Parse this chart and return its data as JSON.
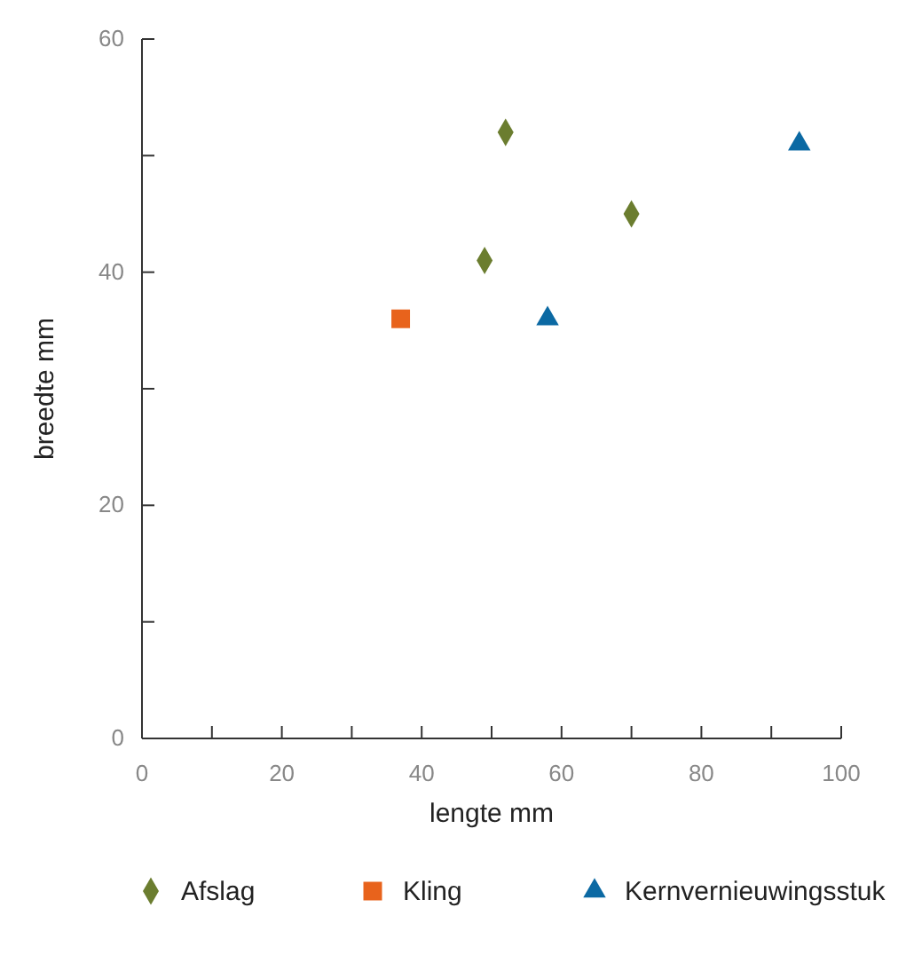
{
  "chart_data": {
    "type": "scatter",
    "xlabel": "lengte mm",
    "ylabel": "breedte mm",
    "xlim": [
      0,
      100
    ],
    "ylim": [
      0,
      60
    ],
    "xticks": [
      0,
      {
        "value": 10,
        "label": null
      },
      20,
      {
        "value": 30,
        "label": null
      },
      40,
      {
        "value": 50,
        "label": null
      },
      60,
      {
        "value": 70,
        "label": null
      },
      80,
      {
        "value": 90,
        "label": null
      },
      100
    ],
    "yticks": [
      0,
      {
        "value": 10,
        "label": null
      },
      20,
      {
        "value": 30,
        "label": null
      },
      40,
      {
        "value": 50,
        "label": null
      },
      60
    ],
    "grid": false,
    "legend": "bottom",
    "series": [
      {
        "name": "Afslag",
        "color": "#6b7d2f",
        "marker": "diamond",
        "x": [
          49,
          52,
          70
        ],
        "values": [
          41,
          52,
          45
        ]
      },
      {
        "name": "Kling",
        "color": "#e8631c",
        "marker": "square",
        "x": [
          37
        ],
        "values": [
          36
        ]
      },
      {
        "name": "Kernvernieuwingsstuk",
        "color": "#0b69a3",
        "marker": "triangle",
        "x": [
          58,
          94
        ],
        "values": [
          36,
          51
        ]
      }
    ]
  }
}
